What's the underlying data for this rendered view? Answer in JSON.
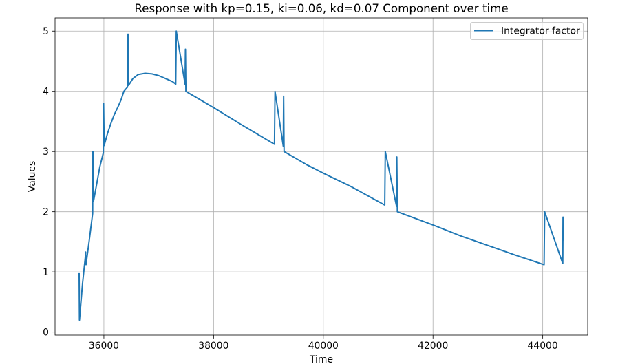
{
  "chart_data": {
    "type": "line",
    "title": "Response with kp=0.15, ki=0.06, kd=0.07 Component over time",
    "xlabel": "Time",
    "ylabel": "Values",
    "xlim": [
      35110,
      44820
    ],
    "ylim": [
      -0.05,
      5.22
    ],
    "xticks": [
      36000,
      38000,
      40000,
      42000,
      44000
    ],
    "yticks": [
      0,
      1,
      2,
      3,
      4,
      5
    ],
    "grid": true,
    "legend": "top-right",
    "series": [
      {
        "name": "Integrator factor",
        "color": "#1f77b4",
        "x": [
          35549,
          35555,
          35610,
          35662,
          35668,
          35674,
          35737,
          35795,
          35800,
          35810,
          35875,
          35925,
          35990,
          35995,
          36005,
          36063,
          36125,
          36188,
          36251,
          36314,
          36364,
          36430,
          36440,
          36450,
          36527,
          36627,
          36752,
          36878,
          37003,
          37129,
          37254,
          37310,
          37320,
          37480,
          37487,
          37495,
          38000,
          38500,
          39000,
          39110,
          39120,
          39270,
          39277,
          39285,
          39700,
          40000,
          40500,
          41000,
          41120,
          41130,
          41335,
          41340,
          41350,
          42000,
          42500,
          43000,
          43500,
          44025,
          44035,
          44365,
          44370,
          44377
        ],
        "y": [
          0.98,
          0.2,
          0.8,
          1.25,
          1.33,
          1.12,
          1.55,
          1.97,
          3.0,
          2.17,
          2.49,
          2.74,
          2.98,
          3.8,
          3.1,
          3.29,
          3.46,
          3.61,
          3.73,
          3.86,
          4.0,
          4.07,
          4.95,
          4.1,
          4.21,
          4.28,
          4.3,
          4.29,
          4.26,
          4.21,
          4.16,
          4.12,
          5.0,
          4.12,
          4.7,
          4.0,
          3.73,
          3.45,
          3.18,
          3.12,
          4.0,
          3.09,
          3.92,
          3.0,
          2.78,
          2.64,
          2.42,
          2.17,
          2.11,
          3.0,
          2.09,
          2.91,
          2.0,
          1.78,
          1.6,
          1.44,
          1.28,
          1.12,
          2.0,
          1.14,
          1.91,
          1.52
        ]
      }
    ]
  }
}
